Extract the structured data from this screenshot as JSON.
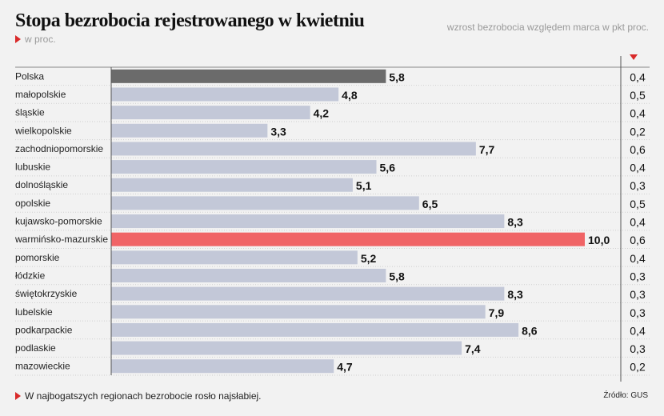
{
  "title": "Stopa bezrobocia rejestrowanego w kwietniu",
  "subtitle": "w proc.",
  "right_note": "wzrost bezrobocia względem marca w pkt proc.",
  "footnote": "W najbogatszych regionach bezrobocie rosło najsłabiej.",
  "source": "Źródło: GUS",
  "colors": {
    "default_bar": "#c3c8d8",
    "highlight_country": "#6b6b6b",
    "highlight_max": "#f06466",
    "accent": "#d92a2a"
  },
  "chart_data": {
    "type": "bar",
    "orientation": "horizontal",
    "title": "Stopa bezrobocia rejestrowanego w kwietniu",
    "subtitle": "w proc.",
    "categories": [
      "Polska",
      "małopolskie",
      "śląskie",
      "wielkopolskie",
      "zachodniopomorskie",
      "lubuskie",
      "dolnośląskie",
      "opolskie",
      "kujawsko-pomorskie",
      "warmińsko-mazurskie",
      "pomorskie",
      "łódzkie",
      "świętokrzyskie",
      "lubelskie",
      "podkarpackie",
      "podlaskie",
      "mazowieckie"
    ],
    "series": [
      {
        "values": [
          5.8,
          4.8,
          4.2,
          3.3,
          7.7,
          5.6,
          5.1,
          6.5,
          8.3,
          10.0,
          5.2,
          5.8,
          8.3,
          7.9,
          8.6,
          7.4,
          4.7
        ],
        "labels": [
          "5,8",
          "4,8",
          "4,2",
          "3,3",
          "7,7",
          "5,6",
          "5,1",
          "6,5",
          "8,3",
          "10,0",
          "5,2",
          "5,8",
          "8,3",
          "7,9",
          "8,6",
          "7,4",
          "4,7"
        ]
      }
    ],
    "change_column": {
      "header": "wzrost bezrobocia względem marca w pkt proc.",
      "values": [
        0.4,
        0.5,
        0.4,
        0.2,
        0.6,
        0.4,
        0.3,
        0.5,
        0.4,
        0.6,
        0.4,
        0.3,
        0.3,
        0.3,
        0.4,
        0.3,
        0.2
      ],
      "labels": [
        "0,4",
        "0,5",
        "0,4",
        "0,2",
        "0,6",
        "0,4",
        "0,3",
        "0,5",
        "0,4",
        "0,6",
        "0,4",
        "0,3",
        "0,3",
        "0,3",
        "0,4",
        "0,3",
        "0,2"
      ]
    },
    "highlight": {
      "Polska": "highlight_country",
      "warmińsko-mazurskie": "highlight_max"
    },
    "xlim": [
      0,
      10
    ],
    "grid": false
  }
}
